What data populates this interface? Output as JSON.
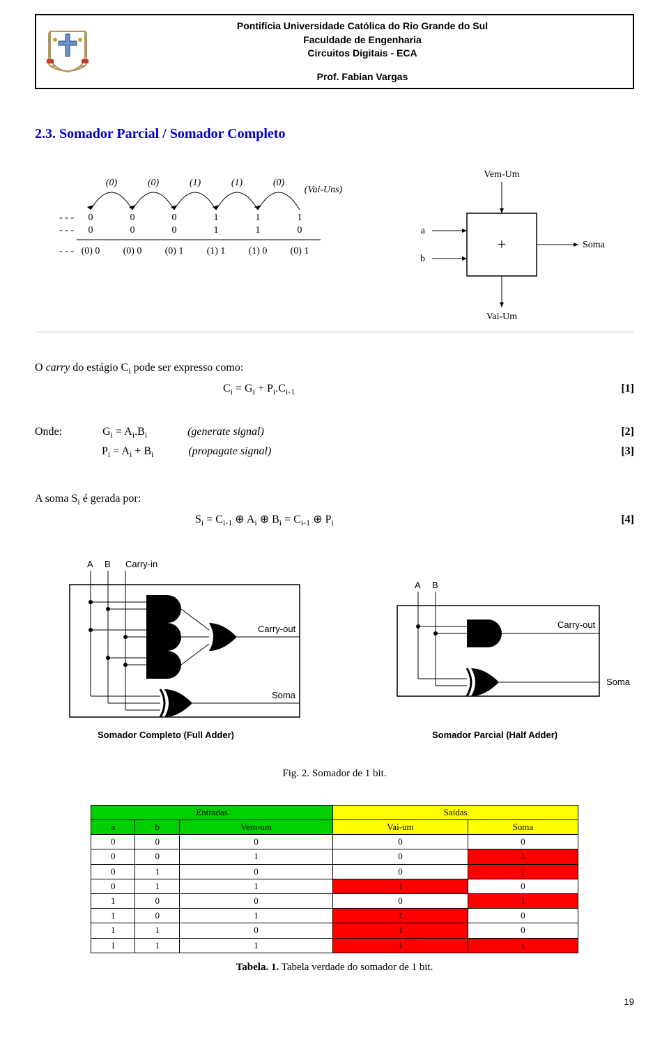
{
  "header": {
    "university": "Pontifícia Universidade Católica do Rio Grande do Sul",
    "faculty": "Faculdade de Engenharia",
    "course": "Circuitos Digitais - ECA",
    "professor": "Prof. Fabian Vargas"
  },
  "section_title": "2.3. Somador Parcial / Somador Completo",
  "carry_diagram": {
    "arc_labels": [
      "(0)",
      "(0)",
      "(1)",
      "(1)",
      "(0)",
      "(Vai-Uns)"
    ],
    "row1": [
      "0",
      "0",
      "0",
      "1",
      "1",
      "1"
    ],
    "row2": [
      "0",
      "0",
      "0",
      "1",
      "1",
      "0"
    ],
    "sums": [
      "(0) 0",
      "(0) 0",
      "(0) 1",
      "(1) 1",
      "(1) 0",
      "(0) 1"
    ],
    "leading": "- - -"
  },
  "block_diagram": {
    "inputs": [
      "a",
      "b"
    ],
    "top": "Vem-Um",
    "right": "Soma",
    "bottom": "Vai-Um",
    "symbol": "+"
  },
  "equations": {
    "intro": "O carry do estágio Cᵢ pode ser expresso como:",
    "eq1": "Cᵢ = Gᵢ + Pᵢ.Cᵢ₋₁",
    "eq1_tag": "[1]",
    "where": "Onde:",
    "g_def": "Gᵢ = Aᵢ.Bᵢ",
    "g_note": "(generate signal)",
    "g_tag": "[2]",
    "p_def": "Pᵢ = Aᵢ + Bᵢ",
    "p_note": "(propagate signal)",
    "p_tag": "[3]",
    "sum_intro": "A soma Sᵢ é gerada por:",
    "sum_def": "Sᵢ = Cᵢ₋₁ ⊕ Aᵢ ⊕ Bᵢ = Cᵢ₋₁ ⊕ Pᵢ",
    "sum_tag": "[4]"
  },
  "circuits": {
    "full": {
      "inputs": [
        "A",
        "B",
        "Carry-in"
      ],
      "carry_out": "Carry-out",
      "sum": "Soma",
      "caption": "Somador Completo  (Full Adder)"
    },
    "half": {
      "inputs": [
        "A",
        "B"
      ],
      "carry_out": "Carry-out",
      "sum": "Soma",
      "caption": "Somador Parcial  (Half Adder)"
    },
    "figure_caption": "Fig. 2. Somador de 1 bit."
  },
  "truth_table": {
    "header_groups": {
      "inputs": "Entradas",
      "outputs": "Saídas"
    },
    "columns": [
      "a",
      "b",
      "Vem-um",
      "Vai-um",
      "Soma"
    ],
    "rows": [
      {
        "cells": [
          "0",
          "0",
          "0",
          "0",
          "0"
        ],
        "red": []
      },
      {
        "cells": [
          "0",
          "0",
          "1",
          "0",
          "1"
        ],
        "red": [
          4
        ]
      },
      {
        "cells": [
          "0",
          "1",
          "0",
          "0",
          "1"
        ],
        "red": [
          4
        ]
      },
      {
        "cells": [
          "0",
          "1",
          "1",
          "1",
          "0"
        ],
        "red": [
          3
        ]
      },
      {
        "cells": [
          "1",
          "0",
          "0",
          "0",
          "1"
        ],
        "red": [
          4
        ]
      },
      {
        "cells": [
          "1",
          "0",
          "1",
          "1",
          "0"
        ],
        "red": [
          3
        ]
      },
      {
        "cells": [
          "1",
          "1",
          "0",
          "1",
          "0"
        ],
        "red": [
          3
        ]
      },
      {
        "cells": [
          "1",
          "1",
          "1",
          "1",
          "1"
        ],
        "red": [
          3,
          4
        ]
      }
    ],
    "caption": "Tabela. 1. Tabela verdade do somador de 1 bit."
  },
  "page_number": "19"
}
